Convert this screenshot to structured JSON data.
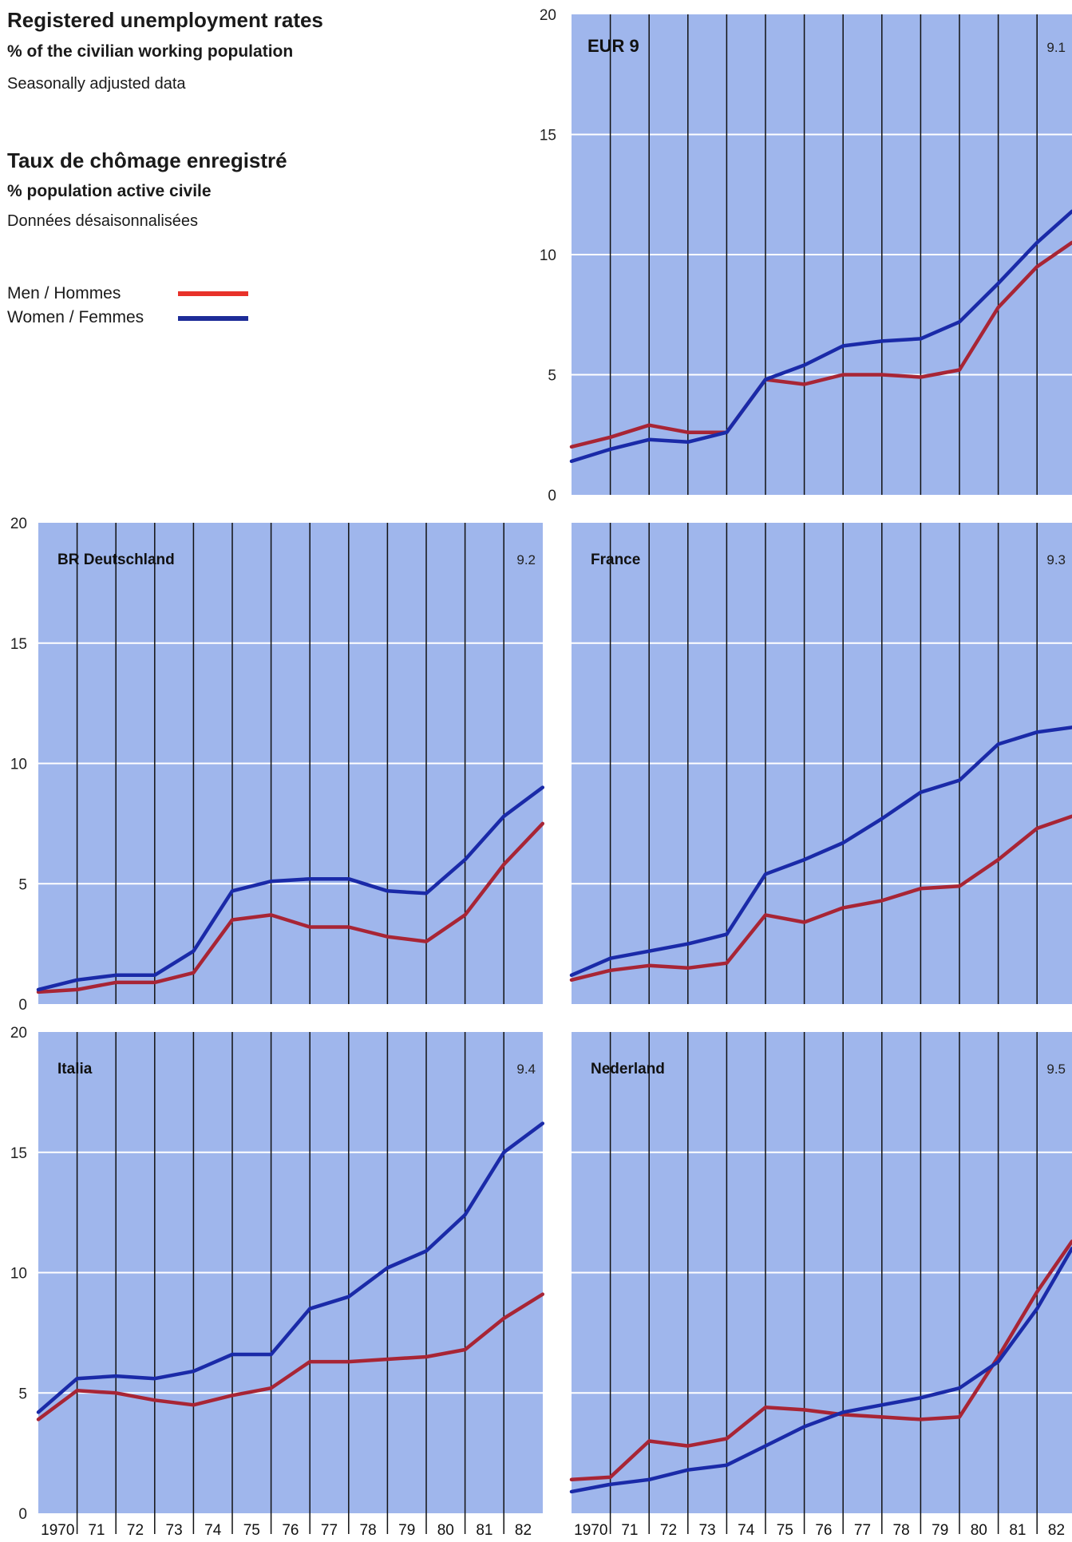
{
  "header": {
    "title_en": "Registered unemployment rates",
    "subtitle_en": "% of the civilian working population",
    "note_en": "Seasonally adjusted data",
    "title_fr": "Taux de chômage enregistré",
    "subtitle_fr": "% population active civile",
    "note_fr": "Données désaisonnalisées"
  },
  "legend": {
    "men_label": "Men / Hommes",
    "women_label": "Women / Femmes"
  },
  "colors": {
    "men": "#a82535",
    "women": "#1a2aa8",
    "panel": "#9fb6ec",
    "grid": "#ffffff",
    "year_line": "#111111",
    "legend_men": "#e8322a",
    "legend_women": "#1d2c98"
  },
  "axis": {
    "y_ticks": [
      "0",
      "5",
      "10",
      "15",
      "20"
    ],
    "x_tick_labels": [
      "1970",
      "71",
      "72",
      "73",
      "74",
      "75",
      "76",
      "77",
      "78",
      "79",
      "80",
      "81",
      "82"
    ]
  },
  "chart_data": [
    {
      "type": "line",
      "title": "EUR 9",
      "number": "9.1",
      "x": [
        1970.0,
        1971.0,
        1972.0,
        1973.0,
        1974.0,
        1975.0,
        1976.0,
        1977.0,
        1978.0,
        1979.0,
        1980.0,
        1981.0,
        1982.0,
        1983.0
      ],
      "ylim": [
        0,
        20
      ],
      "xlim": [
        1970,
        1983.3
      ],
      "series": [
        {
          "name": "Men / Hommes",
          "values": [
            2.0,
            2.4,
            2.9,
            2.6,
            2.6,
            4.8,
            4.6,
            5.0,
            5.0,
            4.9,
            5.2,
            7.8,
            9.5,
            10.5
          ]
        },
        {
          "name": "Women / Femmes",
          "values": [
            1.4,
            1.9,
            2.3,
            2.2,
            2.6,
            4.8,
            5.4,
            6.2,
            6.4,
            6.5,
            7.2,
            8.8,
            10.5,
            11.8
          ]
        }
      ]
    },
    {
      "type": "line",
      "title": "BR Deutschland",
      "number": "9.2",
      "x": [
        1970.0,
        1971.0,
        1972.0,
        1973.0,
        1974.0,
        1975.0,
        1976.0,
        1977.0,
        1978.0,
        1979.0,
        1980.0,
        1981.0,
        1982.0,
        1983.0
      ],
      "ylim": [
        0,
        20
      ],
      "xlim": [
        1970,
        1983.0
      ],
      "series": [
        {
          "name": "Men / Hommes",
          "values": [
            0.5,
            0.6,
            0.9,
            0.9,
            1.3,
            3.5,
            3.7,
            3.2,
            3.2,
            2.8,
            2.6,
            3.7,
            5.8,
            7.5
          ]
        },
        {
          "name": "Women / Femmes",
          "values": [
            0.6,
            1.0,
            1.2,
            1.2,
            2.2,
            4.7,
            5.1,
            5.2,
            5.2,
            4.7,
            4.6,
            6.0,
            7.8,
            9.0
          ]
        }
      ]
    },
    {
      "type": "line",
      "title": "France",
      "number": "9.3",
      "x": [
        1970.0,
        1971.0,
        1972.0,
        1973.0,
        1974.0,
        1975.0,
        1976.0,
        1977.0,
        1978.0,
        1979.0,
        1980.0,
        1981.0,
        1982.0,
        1983.0
      ],
      "ylim": [
        0,
        20
      ],
      "xlim": [
        1970,
        1983.3
      ],
      "series": [
        {
          "name": "Men / Hommes",
          "values": [
            1.0,
            1.4,
            1.6,
            1.5,
            1.7,
            3.7,
            3.4,
            4.0,
            4.3,
            4.8,
            4.9,
            6.0,
            7.3,
            7.8
          ]
        },
        {
          "name": "Women / Femmes",
          "values": [
            1.2,
            1.9,
            2.2,
            2.5,
            2.9,
            5.4,
            6.0,
            6.7,
            7.7,
            8.8,
            9.3,
            10.8,
            11.3,
            11.5
          ]
        }
      ]
    },
    {
      "type": "line",
      "title": "Italia",
      "number": "9.4",
      "x": [
        1970.0,
        1971.0,
        1972.0,
        1973.0,
        1974.0,
        1975.0,
        1976.0,
        1977.0,
        1978.0,
        1979.0,
        1980.0,
        1981.0,
        1982.0,
        1983.0
      ],
      "ylim": [
        0,
        20
      ],
      "xlim": [
        1970,
        1983.0
      ],
      "series": [
        {
          "name": "Men / Hommes",
          "values": [
            3.9,
            5.1,
            5.0,
            4.7,
            4.5,
            4.9,
            5.2,
            6.3,
            6.3,
            6.4,
            6.5,
            6.8,
            8.1,
            9.1
          ]
        },
        {
          "name": "Women / Femmes",
          "values": [
            4.2,
            5.6,
            5.7,
            5.6,
            5.9,
            6.6,
            6.6,
            8.5,
            9.0,
            10.2,
            10.9,
            12.4,
            15.0,
            16.2
          ]
        }
      ]
    },
    {
      "type": "line",
      "title": "Nederland",
      "number": "9.5",
      "x": [
        1970.0,
        1971.0,
        1972.0,
        1973.0,
        1974.0,
        1975.0,
        1976.0,
        1977.0,
        1978.0,
        1979.0,
        1980.0,
        1981.0,
        1982.0,
        1983.0
      ],
      "ylim": [
        0,
        20
      ],
      "xlim": [
        1970,
        1983.3
      ],
      "series": [
        {
          "name": "Men / Hommes",
          "values": [
            1.4,
            1.5,
            3.0,
            2.8,
            3.1,
            4.4,
            4.3,
            4.1,
            4.0,
            3.9,
            4.0,
            6.5,
            9.2,
            11.3
          ]
        },
        {
          "name": "Women / Femmes",
          "values": [
            0.9,
            1.2,
            1.4,
            1.8,
            2.0,
            2.8,
            3.6,
            4.2,
            4.5,
            4.8,
            5.2,
            6.3,
            8.5,
            11.0
          ]
        }
      ]
    }
  ]
}
